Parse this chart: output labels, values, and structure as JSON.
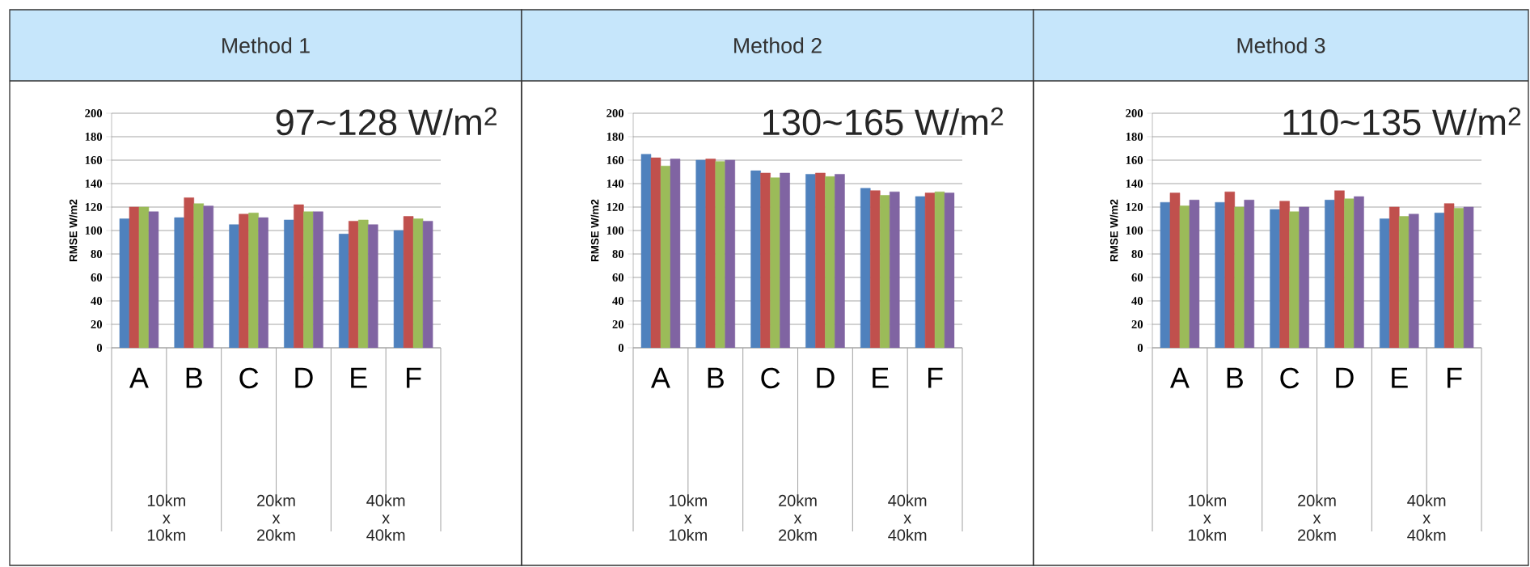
{
  "chart_data": [
    {
      "type": "bar",
      "title": "Method 1",
      "ylabel": "RMSE W/m2",
      "categories": [
        "A",
        "B",
        "C",
        "D",
        "E",
        "F"
      ],
      "series": [
        {
          "color": "#4f81bd",
          "values": [
            110,
            111,
            105,
            109,
            97,
            100
          ]
        },
        {
          "color": "#c0504d",
          "values": [
            120,
            128,
            114,
            122,
            108,
            112
          ]
        },
        {
          "color": "#9bbb59",
          "values": [
            120,
            123,
            115,
            116,
            109,
            110
          ]
        },
        {
          "color": "#8064a2",
          "values": [
            116,
            121,
            111,
            116,
            105,
            108
          ]
        }
      ],
      "ylim": [
        0,
        200
      ],
      "yticks": [
        0,
        20,
        40,
        60,
        80,
        100,
        120,
        140,
        160,
        180,
        200
      ],
      "grid": "y",
      "annotations": [
        "97~128 W/m$^{2}$",
        "10km x 10km",
        "20km x 20km",
        "40km x 40km"
      ]
    },
    {
      "type": "bar",
      "title": "Method 2",
      "ylabel": "RMSE W/m2",
      "categories": [
        "A",
        "B",
        "C",
        "D",
        "E",
        "F"
      ],
      "series": [
        {
          "color": "#4f81bd",
          "values": [
            165,
            160,
            151,
            148,
            136,
            129
          ]
        },
        {
          "color": "#c0504d",
          "values": [
            162,
            161,
            149,
            149,
            134,
            132
          ]
        },
        {
          "color": "#9bbb59",
          "values": [
            155,
            159,
            145,
            146,
            130,
            133
          ]
        },
        {
          "color": "#8064a2",
          "values": [
            161,
            160,
            149,
            148,
            133,
            132
          ]
        }
      ],
      "ylim": [
        0,
        200
      ],
      "yticks": [
        0,
        20,
        40,
        60,
        80,
        100,
        120,
        140,
        160,
        180,
        200
      ],
      "grid": "y",
      "annotations": [
        "130~165 W/m$^{2}$",
        "10km x 10km",
        "20km x 20km",
        "40km x 40km"
      ]
    },
    {
      "type": "bar",
      "title": "Method 3",
      "ylabel": "RMSE W/m2",
      "categories": [
        "A",
        "B",
        "C",
        "D",
        "E",
        "F"
      ],
      "series": [
        {
          "color": "#4f81bd",
          "values": [
            124,
            124,
            118,
            126,
            110,
            115
          ]
        },
        {
          "color": "#c0504d",
          "values": [
            132,
            133,
            125,
            134,
            120,
            123
          ]
        },
        {
          "color": "#9bbb59",
          "values": [
            121,
            120,
            116,
            127,
            112,
            119
          ]
        },
        {
          "color": "#8064a2",
          "values": [
            126,
            126,
            120,
            129,
            114,
            120
          ]
        }
      ],
      "ylim": [
        0,
        200
      ],
      "yticks": [
        0,
        20,
        40,
        60,
        80,
        100,
        120,
        140,
        160,
        180,
        200
      ],
      "grid": "y",
      "annotations": [
        "110~135 W/m$^{2}$",
        "10km x 10km",
        "20km x 20km",
        "40km x 40km"
      ]
    }
  ]
}
